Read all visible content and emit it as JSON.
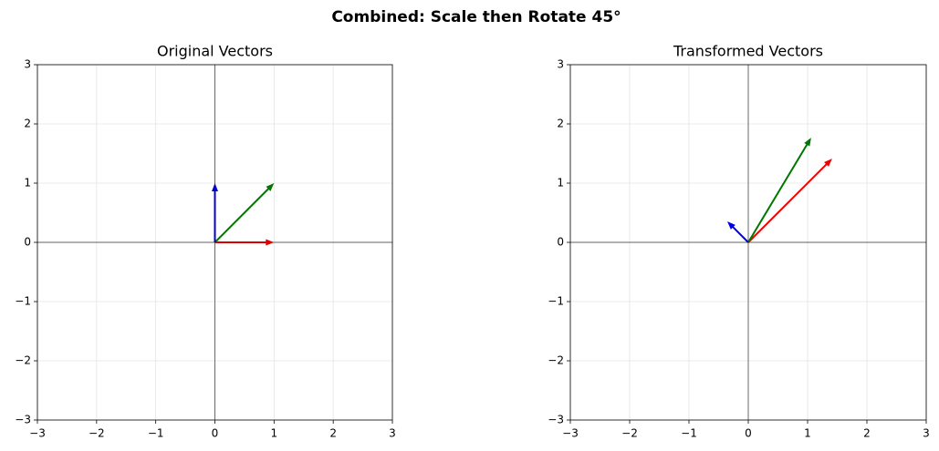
{
  "title": "Combined: Scale then Rotate 45°",
  "chart_data": [
    {
      "type": "quiver",
      "title": "Original Vectors",
      "vectors": [
        {
          "color": "#dd0000",
          "u": 1,
          "v": 0
        },
        {
          "color": "#007700",
          "u": 1,
          "v": 1
        },
        {
          "color": "#0000cc",
          "u": 0,
          "v": 1
        }
      ],
      "xlim": [
        -3,
        3
      ],
      "ylim": [
        -3,
        3
      ],
      "xticks": [
        {
          "value": -3,
          "label": "−3"
        },
        {
          "value": -2,
          "label": "−2"
        },
        {
          "value": -1,
          "label": "−1"
        },
        0,
        1,
        2,
        3
      ],
      "yticks": [
        {
          "value": -3,
          "label": "−3"
        },
        {
          "value": -2,
          "label": "−2"
        },
        {
          "value": -1,
          "label": "−1"
        },
        0,
        1,
        2,
        3
      ],
      "grid": true
    },
    {
      "type": "quiver",
      "title": "Transformed Vectors",
      "vectors": [
        {
          "color": "#ee0000",
          "u": 1.414,
          "v": 1.414
        },
        {
          "color": "#007700",
          "u": 1.06,
          "v": 1.768
        },
        {
          "color": "#0000ee",
          "u": -0.354,
          "v": 0.354
        }
      ],
      "xlim": [
        -3,
        3
      ],
      "ylim": [
        -3,
        3
      ],
      "xticks": [
        {
          "value": -3,
          "label": "−3"
        },
        {
          "value": -2,
          "label": "−2"
        },
        {
          "value": -1,
          "label": "−1"
        },
        0,
        1,
        2,
        3
      ],
      "yticks": [
        {
          "value": -3,
          "label": "−3"
        },
        {
          "value": -2,
          "label": "−2"
        },
        {
          "value": -1,
          "label": "−1"
        },
        0,
        1,
        2,
        3
      ],
      "grid": true
    }
  ]
}
